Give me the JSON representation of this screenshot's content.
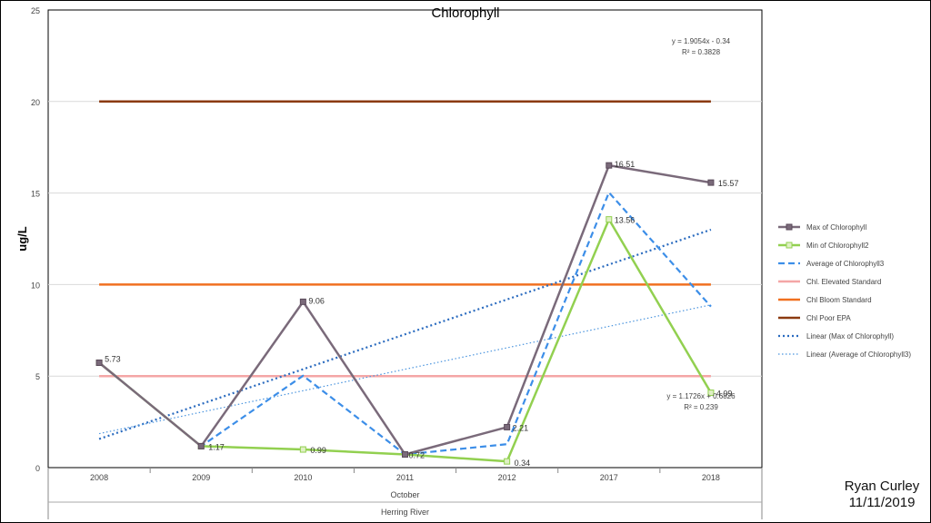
{
  "chart_data": {
    "type": "line",
    "title": "Chlorophyll",
    "ylabel": "ug/L",
    "ylim": [
      0,
      25
    ],
    "yticks": [
      0,
      5,
      10,
      15,
      20,
      25
    ],
    "categories": [
      "2008",
      "2009",
      "2010",
      "2011",
      "2012",
      "2017",
      "2018"
    ],
    "category_group": "October",
    "category_group_outer": "Herring River",
    "grid": true,
    "legend_position": "right",
    "series": [
      {
        "name": "Max of Chlorophyll",
        "values": [
          5.73,
          1.17,
          9.06,
          0.72,
          2.21,
          16.51,
          15.57
        ],
        "color": "#7a6a7a",
        "style": "solid",
        "marker": "square",
        "labels": [
          "5.73",
          "",
          "9.06",
          "",
          "2.21",
          "16.51",
          "15.57"
        ]
      },
      {
        "name": "Min of Chlorophyll2",
        "values": [
          5.73,
          1.17,
          0.99,
          0.72,
          0.34,
          13.56,
          4.09
        ],
        "color": "#92d050",
        "style": "solid",
        "marker": "square",
        "labels": [
          "",
          "1.17",
          "0.99",
          "0.72",
          "0.34",
          "13.56",
          "4.09"
        ]
      },
      {
        "name": "Average of Chlorophyll3",
        "values": [
          5.73,
          1.17,
          5.02,
          0.72,
          1.28,
          15.03,
          8.8
        ],
        "color": "#3c8ee8",
        "style": "dashed",
        "marker": "none",
        "labels": []
      },
      {
        "name": "Chl. Elevated Standard",
        "values": [
          5,
          5,
          5,
          5,
          5,
          5,
          5
        ],
        "color": "#f4a6a6",
        "style": "solid",
        "marker": "none",
        "labels": []
      },
      {
        "name": "Chl Bloom Standard",
        "values": [
          10,
          10,
          10,
          10,
          10,
          10,
          10
        ],
        "color": "#f07020",
        "style": "solid",
        "marker": "none",
        "labels": []
      },
      {
        "name": "Chl Poor EPA",
        "values": [
          20,
          20,
          20,
          20,
          20,
          20,
          20
        ],
        "color": "#8b3a10",
        "style": "solid",
        "marker": "none",
        "labels": []
      },
      {
        "name": "Linear (Max of Chlorophyll)",
        "values": [
          1.5654,
          3.4708,
          5.3762,
          7.2816,
          9.187,
          11.0924,
          12.9978
        ],
        "color": "#2a6bbf",
        "style": "dotted-heavy",
        "marker": "none",
        "labels": []
      },
      {
        "name": "Linear (Average of Chlorophyll3)",
        "values": [
          1.8552,
          3.0278,
          4.2004,
          5.373,
          6.5456,
          7.7182,
          8.8908
        ],
        "color": "#4a94de",
        "style": "dotted-light",
        "marker": "none",
        "labels": []
      }
    ],
    "annotations": [
      {
        "lines": [
          "y = 1.9054x - 0.34",
          "R² = 0.3828"
        ]
      },
      {
        "lines": [
          "y = 1.1726x + 0.6826",
          "R² = 0.239"
        ]
      }
    ]
  },
  "signature": {
    "name": "Ryan Curley",
    "date": "11/11/2019"
  }
}
